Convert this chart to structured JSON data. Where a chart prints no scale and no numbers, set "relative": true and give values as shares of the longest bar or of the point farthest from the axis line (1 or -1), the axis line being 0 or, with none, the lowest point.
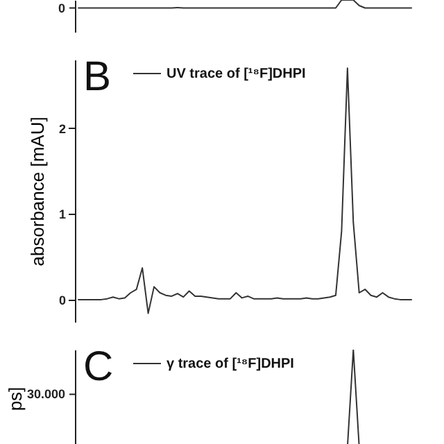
{
  "chart_data": [
    {
      "type": "line",
      "categories": [
        null,
        null,
        null,
        null,
        null,
        null,
        null,
        null,
        null,
        null,
        null,
        null,
        null,
        null,
        null,
        null,
        null,
        null,
        null,
        null,
        null,
        null,
        null,
        null,
        null,
        null,
        null,
        null,
        null,
        null,
        null,
        null,
        null,
        null,
        null,
        null,
        null,
        null,
        null,
        null,
        null,
        null,
        null,
        null,
        null,
        null,
        null,
        null,
        null,
        null,
        null,
        null,
        null,
        null,
        null,
        null,
        null,
        null
      ],
      "series": [
        {
          "color": "#333333",
          "values": [
            0,
            0,
            0,
            0,
            0,
            0,
            0,
            0,
            0,
            0,
            0,
            0,
            0,
            0,
            0,
            0,
            0,
            0.05,
            0,
            0,
            0,
            0,
            0,
            0,
            0,
            0,
            0,
            0,
            0,
            0,
            0,
            0,
            0,
            0,
            0,
            0,
            0,
            0,
            0,
            0,
            0,
            0,
            0,
            0,
            0,
            1,
            1,
            1,
            0.3,
            0,
            0,
            0,
            0,
            0,
            0,
            0,
            0,
            0
          ]
        }
      ],
      "relative": true,
      "annotations": [
        "0"
      ],
      "tick_labels": "y"
    },
    {
      "type": "line",
      "title": "B",
      "ylabel": "absorbance [mAU]",
      "categories": [
        null,
        null,
        null,
        null,
        null,
        null,
        null,
        null,
        null,
        null,
        null,
        null,
        null,
        null,
        null,
        null,
        null,
        null,
        null,
        null,
        null,
        null,
        null,
        null,
        null,
        null,
        null,
        null,
        null,
        null,
        null,
        null,
        null,
        null,
        null,
        null,
        null,
        null,
        null,
        null,
        null,
        null,
        null,
        null,
        null,
        null,
        null,
        null,
        null,
        null,
        null,
        null,
        null,
        null,
        null,
        null,
        null,
        null
      ],
      "series": [
        {
          "name": "UV trace of [¹⁸F]DHPI",
          "color": "#333333",
          "values": [
            0,
            0,
            0,
            0,
            0,
            0.01,
            0.03,
            0.01,
            0.02,
            0.08,
            0.12,
            0.37,
            -0.16,
            0.15,
            0.08,
            0.05,
            0.04,
            0.07,
            0.03,
            0.1,
            0.04,
            0.04,
            0.03,
            0.02,
            0.01,
            0.01,
            0.01,
            0.08,
            0.02,
            0.04,
            0.01,
            0.01,
            0.01,
            0.01,
            0.02,
            0.01,
            0.01,
            0.01,
            0.01,
            0.02,
            0.01,
            0.01,
            0.02,
            0.03,
            0.05,
            0.8,
            2.7,
            0.9,
            0.08,
            0.12,
            0.05,
            0.03,
            0.08,
            0.03,
            0.01,
            0,
            0,
            0
          ]
        }
      ],
      "ylim": [
        -0.26,
        2.8
      ],
      "yticks": [
        0,
        1,
        2
      ],
      "tick_labels": "y",
      "legend": "top left",
      "line_style": "solid"
    },
    {
      "type": "line",
      "title": "C",
      "ylabel": "ps]",
      "categories": [
        null,
        null,
        null,
        null,
        null,
        null,
        null,
        null,
        null,
        null,
        null,
        null,
        null,
        null,
        null,
        null,
        null,
        null,
        null,
        null,
        null,
        null,
        null,
        null,
        null,
        null,
        null,
        null,
        null,
        null,
        null,
        null,
        null,
        null,
        null,
        null,
        null,
        null,
        null,
        null,
        null,
        null,
        null,
        null,
        null,
        null,
        null,
        null,
        null,
        null,
        null,
        null,
        null,
        null,
        null,
        null,
        null,
        null
      ],
      "series": [
        {
          "name": "γ trace of [¹⁸F]DHPI",
          "color": "#333333",
          "values": [
            null,
            null,
            null,
            null,
            null,
            null,
            null,
            null,
            null,
            null,
            null,
            null,
            null,
            null,
            null,
            null,
            null,
            null,
            null,
            null,
            null,
            null,
            null,
            null,
            null,
            null,
            null,
            null,
            null,
            null,
            null,
            null,
            null,
            null,
            null,
            null,
            null,
            null,
            null,
            null,
            null,
            null,
            null,
            null,
            null,
            null,
            0,
            1,
            0,
            null,
            null,
            null,
            null,
            null,
            null,
            null,
            null,
            null
          ]
        }
      ],
      "relative": true,
      "annotations": [
        "30.000"
      ],
      "tick_labels": "y",
      "legend": "top left",
      "line_style": "solid"
    }
  ]
}
